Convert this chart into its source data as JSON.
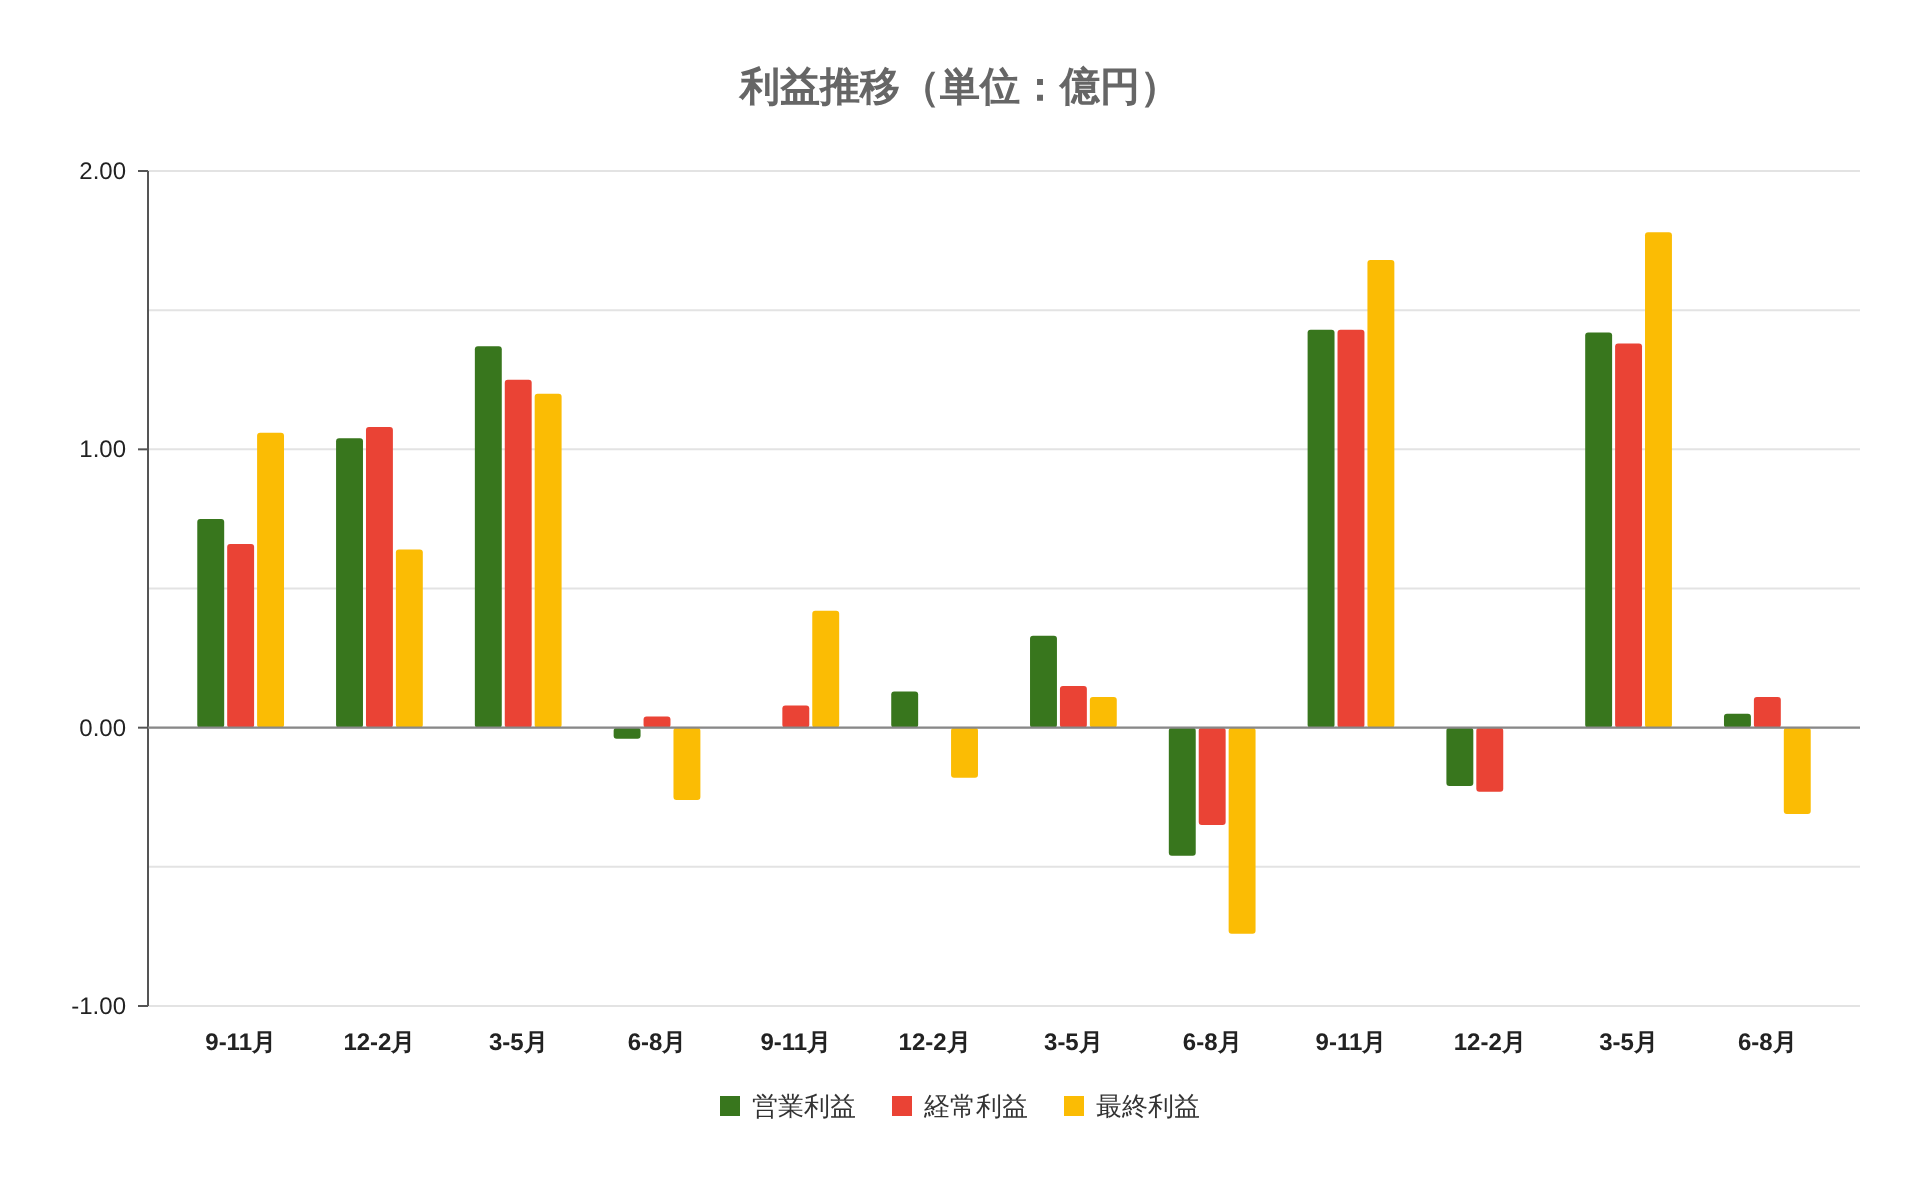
{
  "chart_data": {
    "type": "bar",
    "title": "利益推移（単位：億円）",
    "categories": [
      "9-11月",
      "12-2月",
      "3-5月",
      "6-8月",
      "9-11月",
      "12-2月",
      "3-5月",
      "6-8月",
      "9-11月",
      "12-2月",
      "3-5月",
      "6-8月"
    ],
    "series": [
      {
        "name": "営業利益",
        "color": "#38761d",
        "values": [
          0.75,
          1.04,
          1.37,
          -0.04,
          null,
          0.13,
          0.33,
          -0.46,
          1.43,
          -0.21,
          1.42,
          0.05
        ]
      },
      {
        "name": "経常利益",
        "color": "#ea4335",
        "values": [
          0.66,
          1.08,
          1.25,
          0.04,
          0.08,
          null,
          0.15,
          -0.35,
          1.43,
          -0.23,
          1.38,
          0.11
        ]
      },
      {
        "name": "最終利益",
        "color": "#fbbc04",
        "values": [
          1.06,
          0.64,
          1.2,
          -0.26,
          0.42,
          -0.18,
          0.11,
          -0.74,
          1.68,
          null,
          1.78,
          -0.31
        ]
      }
    ],
    "ylim": [
      -1,
      2
    ],
    "yticks": [
      {
        "value": -1,
        "label": "-1.00"
      },
      {
        "value": -0.5,
        "label": null
      },
      {
        "value": 0,
        "label": "0.00"
      },
      {
        "value": 0.5,
        "label": null
      },
      {
        "value": 1,
        "label": "1.00"
      },
      {
        "value": 1.5,
        "label": null
      },
      {
        "value": 2,
        "label": "2.00"
      }
    ],
    "grid": "y",
    "legend": "bottom"
  }
}
